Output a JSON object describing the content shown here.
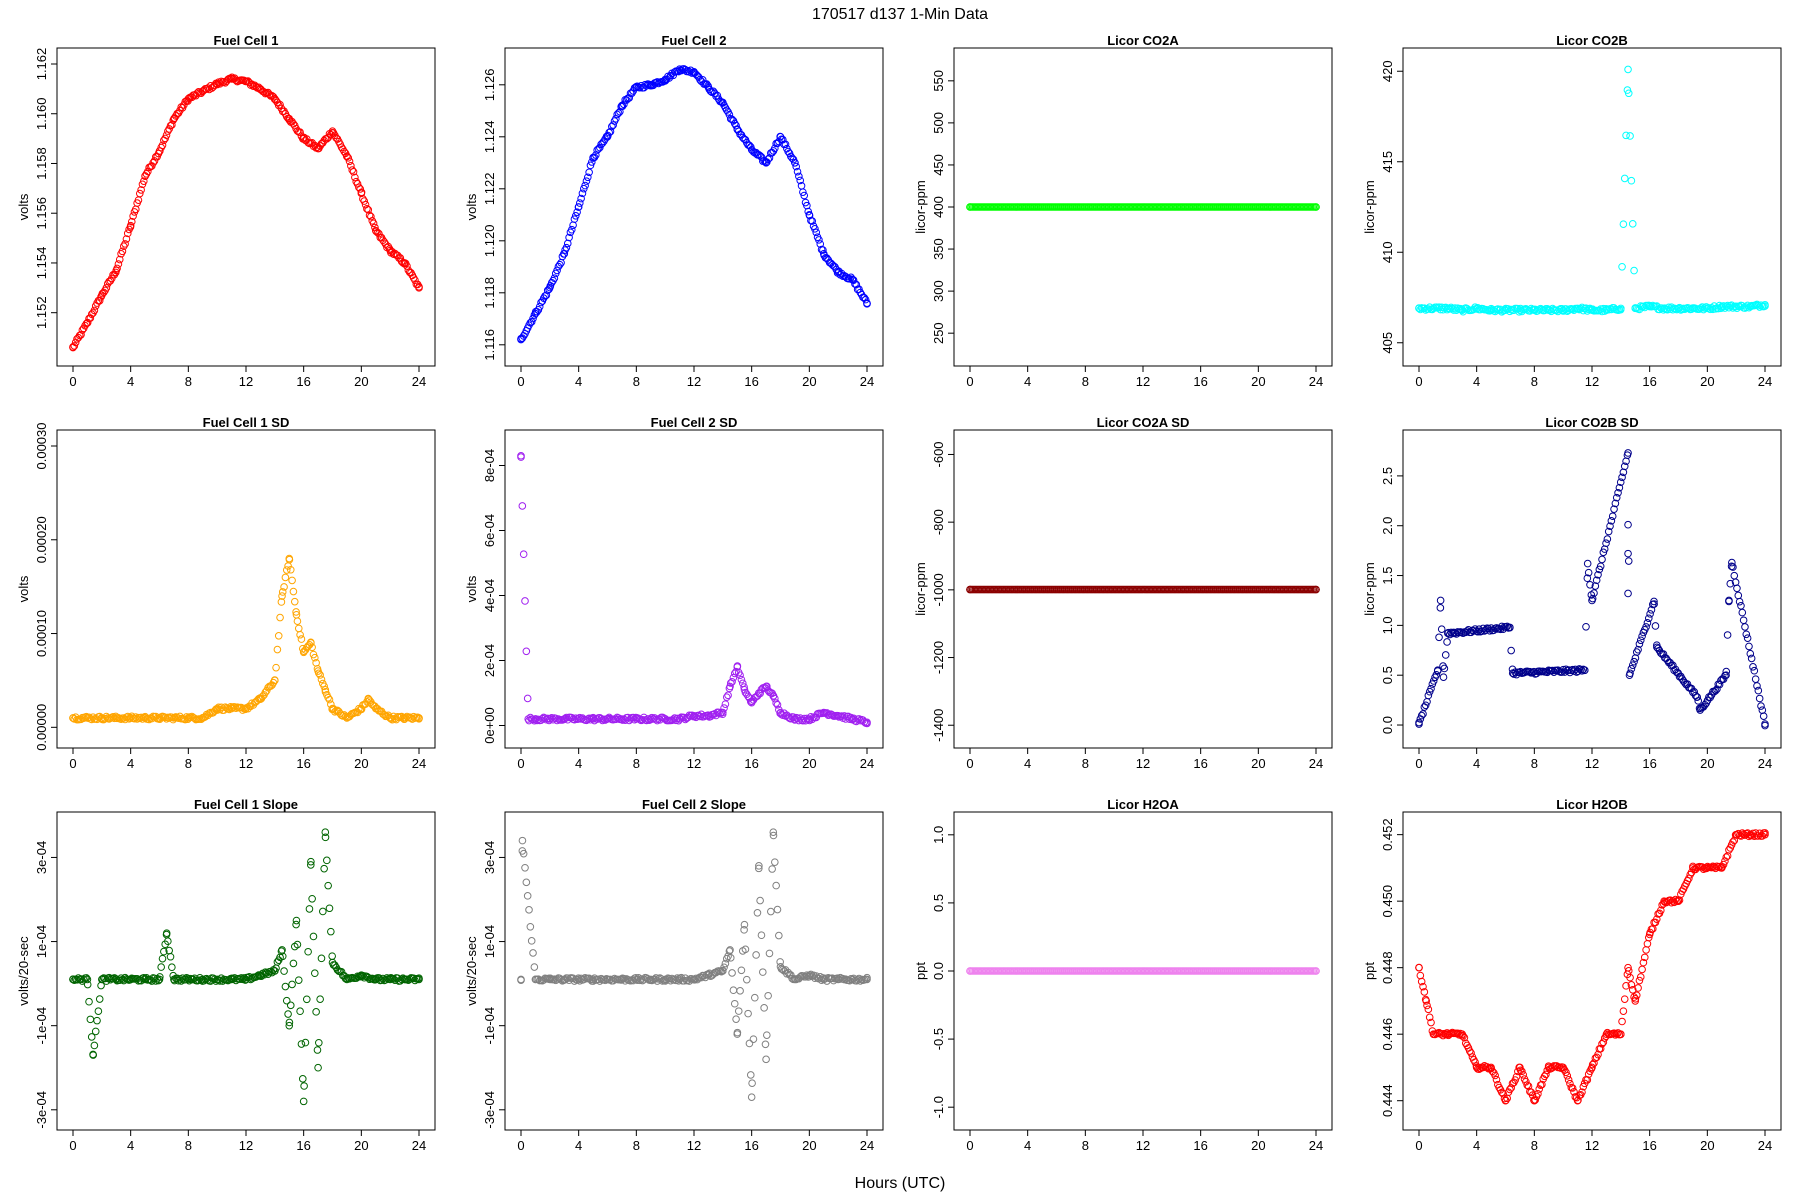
{
  "figure": {
    "title": "170517   d137   1-Min Data",
    "xlabel": "Hours (UTC)"
  },
  "chart_data": [
    {
      "type": "scatter",
      "title": "Fuel Cell 1",
      "ylabel": "volts",
      "color": "#ff0000",
      "xlim": [
        0,
        24
      ],
      "xticks": [
        "0",
        "4",
        "8",
        "12",
        "16",
        "20",
        "24"
      ],
      "yticks": [
        "1.152",
        "1.154",
        "1.156",
        "1.158",
        "1.160",
        "1.162"
      ],
      "ytick_values": [
        1.152,
        1.154,
        1.156,
        1.158,
        1.16,
        1.162
      ],
      "ylim": [
        1.1505,
        1.162
      ],
      "x": [
        0,
        1,
        2,
        3,
        4,
        5,
        6,
        7,
        8,
        9,
        10,
        11,
        12,
        13,
        14,
        15,
        16,
        17,
        18,
        19,
        20,
        21,
        22,
        23,
        24
      ],
      "y": [
        1.1506,
        1.1516,
        1.1527,
        1.1537,
        1.1555,
        1.1575,
        1.1585,
        1.1598,
        1.1606,
        1.1609,
        1.1612,
        1.1614,
        1.1613,
        1.161,
        1.1606,
        1.1598,
        1.159,
        1.1586,
        1.1593,
        1.1583,
        1.1568,
        1.1553,
        1.1545,
        1.154,
        1.153
      ]
    },
    {
      "type": "scatter",
      "title": "Fuel Cell 2",
      "ylabel": "volts",
      "color": "#0000ff",
      "xlim": [
        0,
        24
      ],
      "xticks": [
        "0",
        "4",
        "8",
        "12",
        "16",
        "20",
        "24"
      ],
      "yticks": [
        "1.116",
        "1.118",
        "1.120",
        "1.122",
        "1.124",
        "1.126"
      ],
      "ytick_values": [
        1.116,
        1.118,
        1.12,
        1.122,
        1.124,
        1.126
      ],
      "ylim": [
        1.1158,
        1.1268
      ],
      "x": [
        0,
        1,
        2,
        3,
        4,
        5,
        6,
        7,
        8,
        9,
        10,
        11,
        12,
        13,
        14,
        15,
        16,
        17,
        18,
        19,
        20,
        21,
        22,
        23,
        24
      ],
      "y": [
        1.1162,
        1.1172,
        1.1182,
        1.1195,
        1.1213,
        1.1232,
        1.124,
        1.1252,
        1.1259,
        1.126,
        1.1262,
        1.1266,
        1.1265,
        1.1259,
        1.1253,
        1.1243,
        1.1235,
        1.123,
        1.124,
        1.123,
        1.121,
        1.1195,
        1.1188,
        1.1185,
        1.1176
      ]
    },
    {
      "type": "scatter",
      "title": "Licor CO2A",
      "ylabel": "licor-ppm",
      "color": "#00ff00",
      "xlim": [
        0,
        24
      ],
      "xticks": [
        "0",
        "4",
        "8",
        "12",
        "16",
        "20",
        "24"
      ],
      "yticks": [
        "250",
        "300",
        "350",
        "400",
        "450",
        "500",
        "550"
      ],
      "ytick_values": [
        250,
        300,
        350,
        400,
        450,
        500,
        550
      ],
      "ylim": [
        230,
        570
      ],
      "x": [
        0,
        24
      ],
      "y": [
        400,
        400
      ]
    },
    {
      "type": "scatter",
      "title": "Licor CO2B",
      "ylabel": "licor-ppm",
      "color": "#00ffff",
      "xlim": [
        0,
        24
      ],
      "xticks": [
        "0",
        "4",
        "8",
        "12",
        "16",
        "20",
        "24"
      ],
      "yticks": [
        "405",
        "410",
        "415",
        "420"
      ],
      "ytick_values": [
        405,
        410,
        415,
        420
      ],
      "ylim": [
        404.6,
        420.4
      ],
      "x": [
        0,
        1,
        2,
        3,
        4,
        5,
        6,
        7,
        8,
        9,
        10,
        11,
        12,
        13,
        14,
        14.5,
        15,
        16,
        17,
        18,
        19,
        20,
        21,
        22,
        23,
        24
      ],
      "y": [
        406.9,
        406.9,
        406.9,
        406.8,
        406.9,
        406.8,
        406.8,
        406.8,
        406.8,
        406.8,
        406.8,
        406.9,
        406.8,
        406.8,
        406.9,
        420.1,
        406.9,
        407.0,
        406.9,
        406.9,
        406.9,
        406.9,
        407.0,
        407.0,
        407.0,
        407.1
      ]
    },
    {
      "type": "scatter",
      "title": "Fuel Cell 1 SD",
      "ylabel": "volts",
      "color": "#ffa500",
      "xlim": [
        0,
        24
      ],
      "xticks": [
        "0",
        "4",
        "8",
        "12",
        "16",
        "20",
        "24"
      ],
      "yticks": [
        "0.00000",
        "0.00010",
        "0.00020",
        "0.00030"
      ],
      "ytick_values": [
        0,
        0.0001,
        0.0002,
        0.0003
      ],
      "ylim": [
        -5e-06,
        0.0003
      ],
      "x": [
        0,
        1,
        2,
        3,
        4,
        5,
        6,
        7,
        8,
        9,
        10,
        11,
        12,
        13,
        14,
        14.5,
        15,
        15.5,
        16,
        16.5,
        17,
        17.5,
        18,
        19,
        20,
        20.5,
        21,
        22,
        23,
        24
      ],
      "y": [
        1e-05,
        1e-05,
        1e-05,
        1e-05,
        1e-05,
        1e-05,
        1e-05,
        1e-05,
        1e-05,
        1e-05,
        2e-05,
        2e-05,
        2e-05,
        3e-05,
        5e-05,
        0.00014,
        0.00018,
        0.00012,
        8e-05,
        9e-05,
        6e-05,
        4e-05,
        2e-05,
        1e-05,
        2e-05,
        3e-05,
        2e-05,
        1e-05,
        1e-05,
        1e-05
      ]
    },
    {
      "type": "scatter",
      "title": "Fuel Cell 2 SD",
      "ylabel": "volts",
      "color": "#a020f0",
      "xlim": [
        0,
        24
      ],
      "xticks": [
        "0",
        "4",
        "8",
        "12",
        "16",
        "20",
        "24"
      ],
      "yticks": [
        "0e+00",
        "2e-04",
        "4e-04",
        "6e-04",
        "8e-04"
      ],
      "ytick_values": [
        0,
        0.0002,
        0.0004,
        0.0006,
        0.0008
      ],
      "ylim": [
        -2e-05,
        0.00086
      ],
      "x": [
        0,
        0.5,
        1,
        2,
        3,
        4,
        5,
        6,
        7,
        8,
        9,
        10,
        11,
        12,
        13,
        14,
        14.5,
        15,
        15.5,
        16,
        16.5,
        17,
        17.5,
        18,
        19,
        20,
        21,
        22,
        23,
        24
      ],
      "y": [
        0.00083,
        2e-05,
        2e-05,
        2e-05,
        2e-05,
        2e-05,
        2e-05,
        2e-05,
        2e-05,
        2e-05,
        2e-05,
        2e-05,
        2e-05,
        3e-05,
        3e-05,
        4e-05,
        0.00012,
        0.00018,
        0.00011,
        7e-05,
        0.0001,
        0.00012,
        9e-05,
        4e-05,
        2e-05,
        2e-05,
        4e-05,
        3e-05,
        2e-05,
        1e-05
      ]
    },
    {
      "type": "scatter",
      "title": "Licor CO2A SD",
      "ylabel": "licor-ppm",
      "color": "#8b0000",
      "xlim": [
        0,
        24
      ],
      "xticks": [
        "0",
        "4",
        "8",
        "12",
        "16",
        "20",
        "24"
      ],
      "yticks": [
        "-1400",
        "-1200",
        "-1000",
        "-800",
        "-600"
      ],
      "ytick_values": [
        -1400,
        -1200,
        -1000,
        -800,
        -600
      ],
      "ylim": [
        -1420,
        -575
      ],
      "x": [
        0,
        24
      ],
      "y": [
        -999,
        -999
      ]
    },
    {
      "type": "scatter",
      "title": "Licor CO2B SD",
      "ylabel": "licor-ppm",
      "color": "#00008b",
      "xlim": [
        0,
        24
      ],
      "xticks": [
        "0",
        "4",
        "8",
        "12",
        "16",
        "20",
        "24"
      ],
      "yticks": [
        "0.0",
        "0.5",
        "1.0",
        "1.5",
        "2.0",
        "2.5"
      ],
      "ytick_values": [
        0,
        0.5,
        1.0,
        1.5,
        2.0,
        2.5
      ],
      "ylim": [
        -0.07,
        2.8
      ],
      "x": [
        0,
        1.3,
        1.5,
        1.7,
        2,
        6.3,
        6.5,
        11.5,
        11.7,
        12,
        14.5,
        14.5,
        14.5,
        14.5,
        14.6,
        16.3,
        16.5,
        19.3,
        19.5,
        21.3,
        21.5,
        21.7,
        24
      ],
      "y": [
        0.01,
        0.55,
        1.25,
        0.48,
        0.92,
        0.98,
        0.52,
        0.55,
        1.62,
        1.25,
        2.73,
        2.01,
        1.72,
        1.32,
        0.5,
        1.24,
        0.78,
        0.28,
        0.15,
        0.5,
        1.25,
        1.63,
        0.01
      ]
    },
    {
      "type": "scatter",
      "title": "Fuel Cell 1 Slope",
      "ylabel": "volts/20-sec",
      "color": "#006400",
      "xlim": [
        0,
        24
      ],
      "xticks": [
        "0",
        "4",
        "8",
        "12",
        "16",
        "20",
        "24"
      ],
      "yticks": [
        "-3e-04",
        "-1e-04",
        "1e-04",
        "3e-04"
      ],
      "ytick_values": [
        -0.0003,
        -0.0001,
        0.0001,
        0.0003
      ],
      "ylim": [
        -0.00031,
        0.00037
      ],
      "x": [
        0,
        1,
        1.4,
        2,
        3,
        4,
        5,
        6,
        6.5,
        7,
        8,
        9,
        10,
        11,
        12,
        13,
        14,
        14.5,
        15,
        15.5,
        16,
        16.5,
        17,
        17.5,
        18,
        19,
        20,
        21,
        22,
        23,
        24
      ],
      "y": [
        1e-05,
        1e-05,
        -0.00017,
        1e-05,
        1e-05,
        1e-05,
        1e-05,
        1e-05,
        0.00012,
        1e-05,
        1e-05,
        1e-05,
        1e-05,
        1e-05,
        1e-05,
        2e-05,
        3e-05,
        8e-05,
        -0.0001,
        0.00015,
        -0.00028,
        0.00029,
        -0.0002,
        0.00036,
        5e-05,
        1e-05,
        2e-05,
        1e-05,
        1e-05,
        1e-05,
        1e-05
      ]
    },
    {
      "type": "scatter",
      "title": "Fuel Cell 2 Slope",
      "ylabel": "volts/20-sec",
      "color": "#808080",
      "xlim": [
        0,
        24
      ],
      "xticks": [
        "0",
        "4",
        "8",
        "12",
        "16",
        "20",
        "24"
      ],
      "yticks": [
        "-3e-04",
        "-1e-04",
        "1e-04",
        "3e-04"
      ],
      "ytick_values": [
        -0.0003,
        -0.0001,
        0.0001,
        0.0003
      ],
      "ylim": [
        -0.00031,
        0.00037
      ],
      "x": [
        0,
        0.1,
        1,
        2,
        3,
        4,
        5,
        6,
        7,
        8,
        9,
        10,
        11,
        12,
        13,
        14,
        14.5,
        15,
        15.5,
        16,
        16.5,
        17,
        17.5,
        18,
        19,
        20,
        21,
        22,
        23,
        24
      ],
      "y": [
        1e-05,
        0.00034,
        1e-05,
        1e-05,
        1e-05,
        1e-05,
        1e-05,
        1e-05,
        1e-05,
        1e-05,
        1e-05,
        1e-05,
        1e-05,
        1e-05,
        2e-05,
        3e-05,
        8e-05,
        -0.00012,
        0.00014,
        -0.00027,
        0.00028,
        -0.00018,
        0.00036,
        4e-05,
        1e-05,
        2e-05,
        1e-05,
        1e-05,
        1e-05,
        1e-05
      ]
    },
    {
      "type": "scatter",
      "title": "Licor H2OA",
      "ylabel": "ppt",
      "color": "#ee82ee",
      "xlim": [
        0,
        24
      ],
      "xticks": [
        "0",
        "4",
        "8",
        "12",
        "16",
        "20",
        "24"
      ],
      "yticks": [
        "-1.0",
        "-0.5",
        "0.0",
        "0.5",
        "1.0"
      ],
      "ytick_values": [
        -1.0,
        -0.5,
        0,
        0.5,
        1.0
      ],
      "ylim": [
        -1.05,
        1.05
      ],
      "x": [
        0,
        24
      ],
      "y": [
        0,
        0
      ]
    },
    {
      "type": "scatter",
      "title": "Licor H2OB",
      "ylabel": "ppt",
      "color": "#ff0000",
      "xlim": [
        0,
        24
      ],
      "xticks": [
        "0",
        "4",
        "8",
        "12",
        "16",
        "20",
        "24"
      ],
      "yticks": [
        "0.444",
        "0.446",
        "0.448",
        "0.450",
        "0.452"
      ],
      "ytick_values": [
        0.444,
        0.446,
        0.448,
        0.45,
        0.452
      ],
      "ylim": [
        0.4436,
        0.4522
      ],
      "x": [
        0,
        0.5,
        1,
        2,
        3,
        4,
        5,
        6,
        7,
        8,
        9,
        10,
        11,
        12,
        13,
        14,
        14.5,
        15,
        16,
        17,
        18,
        19,
        20,
        21,
        22,
        23,
        24
      ],
      "y": [
        0.448,
        0.447,
        0.446,
        0.446,
        0.446,
        0.445,
        0.445,
        0.444,
        0.445,
        0.444,
        0.445,
        0.445,
        0.444,
        0.445,
        0.446,
        0.446,
        0.448,
        0.447,
        0.449,
        0.45,
        0.45,
        0.451,
        0.451,
        0.451,
        0.452,
        0.452,
        0.452
      ]
    }
  ]
}
